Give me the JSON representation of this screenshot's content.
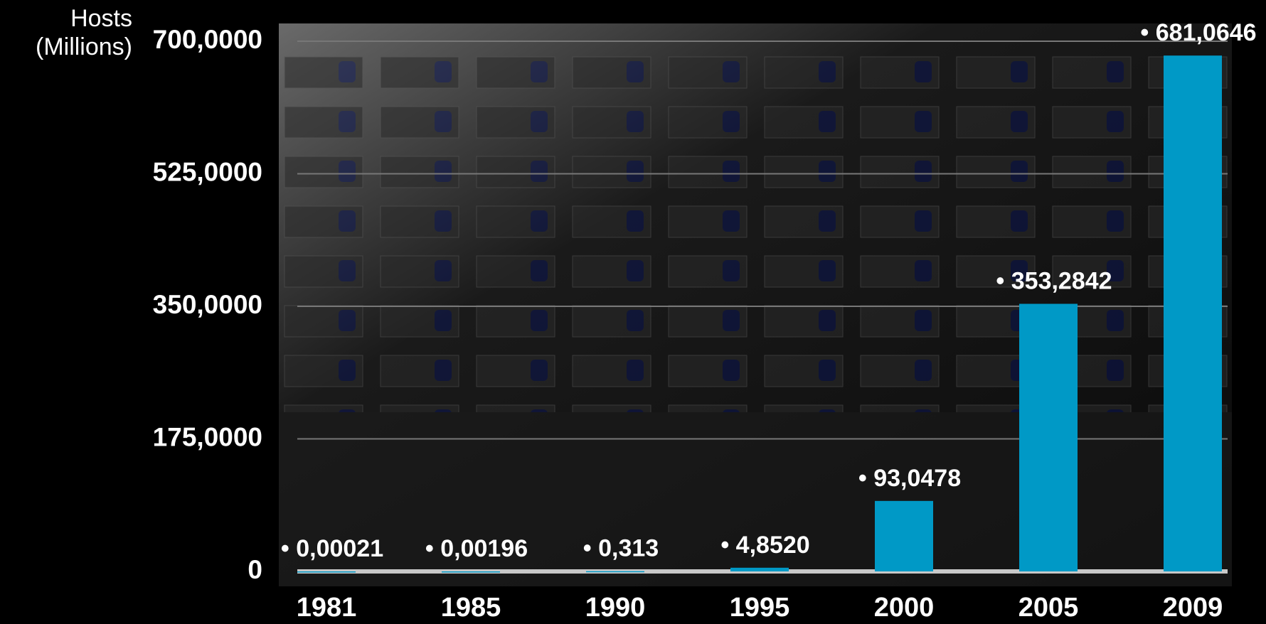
{
  "chart_data": {
    "type": "bar",
    "y_label": "Hosts (Millions)",
    "categories": [
      "1981",
      "1985",
      "1990",
      "1995",
      "2000",
      "2005",
      "2009"
    ],
    "values": [
      0.00021,
      0.00196,
      0.313,
      4.852,
      93.0478,
      353.2842,
      681.0646
    ],
    "value_labels": [
      "• 0,00021",
      "• 0,00196",
      "• 0,313",
      "• 4,8520",
      "• 93,0478",
      "• 353,2842",
      "• 681,0646"
    ],
    "color": "#0099c6",
    "ylim": [
      0,
      700
    ],
    "yticks": [
      0,
      {
        "value": 175,
        "label": "175,0000"
      },
      {
        "value": 350,
        "label": "350,0000"
      },
      {
        "value": 525,
        "label": "525,0000"
      },
      {
        "value": 700,
        "label": "700,0000"
      }
    ],
    "grid": true
  }
}
